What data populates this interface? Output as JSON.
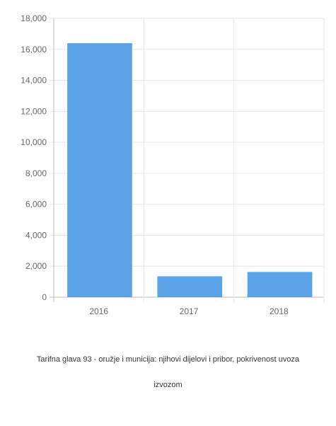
{
  "chart_data": {
    "type": "bar",
    "categories": [
      "2016",
      "2017",
      "2018"
    ],
    "values": [
      16400,
      1350,
      1630
    ],
    "ylim": [
      0,
      18000
    ],
    "y_ticks": [
      "0",
      "2,000",
      "4,000",
      "6,000",
      "8,000",
      "10,000",
      "12,000",
      "14,000",
      "16,000",
      "18,000"
    ],
    "grid": true,
    "bar_color": "#5ba3e6",
    "title": "",
    "xlabel": "",
    "ylabel": ""
  },
  "caption": {
    "line1": "Tarifna glava 93 - oružje i municija: njihovi dijelovi i pribor, pokrivenost uvoza",
    "line2": "izvozom"
  }
}
